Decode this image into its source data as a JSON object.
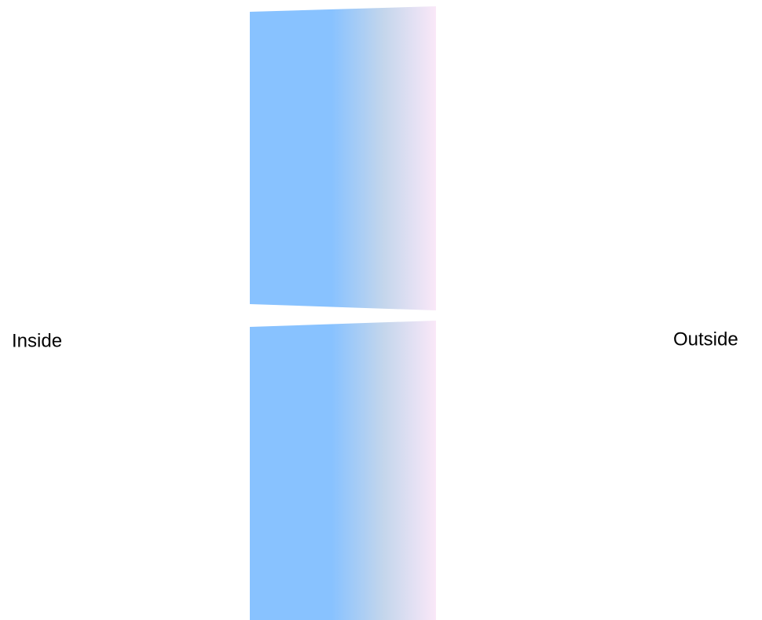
{
  "labels": {
    "inside": "Inside",
    "outside": "Outside"
  }
}
